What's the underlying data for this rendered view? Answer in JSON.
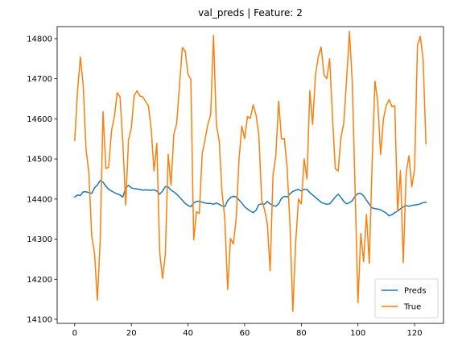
{
  "chart_data": {
    "type": "line",
    "title": "val_preds | Feature: 2",
    "xlabel": "",
    "ylabel": "",
    "xlim": [
      -6.2,
      130.2
    ],
    "ylim": [
      14090,
      14830
    ],
    "xticks": [
      0,
      20,
      40,
      60,
      80,
      100,
      120
    ],
    "yticks": [
      14100,
      14200,
      14300,
      14400,
      14500,
      14600,
      14700,
      14800
    ],
    "grid": false,
    "legend_position": "lower-right",
    "series": [
      {
        "name": "Preds",
        "color": "#1f77b4",
        "y": [
          14405,
          14410,
          14409,
          14418,
          14418,
          14416,
          14414,
          14428,
          14435,
          14446,
          14442,
          14432,
          14424,
          14420,
          14416,
          14413,
          14410,
          14405,
          14428,
          14434,
          14428,
          14426,
          14425,
          14424,
          14422,
          14423,
          14422,
          14422,
          14423,
          14420,
          14412,
          14420,
          14431,
          14430,
          14422,
          14418,
          14412,
          14405,
          14397,
          14389,
          14384,
          14381,
          14390,
          14394,
          14395,
          14392,
          14390,
          14389,
          14389,
          14387,
          14390,
          14387,
          14383,
          14381,
          14396,
          14404,
          14407,
          14405,
          14398,
          14390,
          14381,
          14375,
          14370,
          14366,
          14372,
          14386,
          14388,
          14387,
          14394,
          14388,
          14384,
          14382,
          14388,
          14402,
          14407,
          14405,
          14413,
          14419,
          14422,
          14424,
          14420,
          14424,
          14424,
          14416,
          14410,
          14404,
          14398,
          14392,
          14389,
          14387,
          14388,
          14396,
          14405,
          14412,
          14404,
          14394,
          14388,
          14391,
          14396,
          14407,
          14414,
          14414,
          14408,
          14397,
          14387,
          14378,
          14376,
          14375,
          14373,
          14369,
          14365,
          14358,
          14361,
          14366,
          14370,
          14376,
          14380,
          14384,
          14382,
          14384,
          14385,
          14386,
          14388,
          14391,
          14392
        ]
      },
      {
        "name": "True",
        "color": "#ff7f0e",
        "y": [
          14546,
          14670,
          14754,
          14684,
          14524,
          14466,
          14308,
          14265,
          14148,
          14298,
          14618,
          14476,
          14480,
          14571,
          14605,
          14665,
          14655,
          14540,
          14385,
          14548,
          14578,
          14658,
          14670,
          14657,
          14655,
          14644,
          14633,
          14575,
          14470,
          14539,
          14268,
          14202,
          14262,
          14512,
          14434,
          14562,
          14588,
          14684,
          14778,
          14769,
          14711,
          14698,
          14298,
          14368,
          14364,
          14513,
          14548,
          14586,
          14610,
          14808,
          14586,
          14546,
          14418,
          14350,
          14174,
          14302,
          14288,
          14351,
          14498,
          14582,
          14551,
          14606,
          14601,
          14635,
          14610,
          14560,
          14398,
          14374,
          14339,
          14221,
          14459,
          14508,
          14644,
          14550,
          14551,
          14477,
          14336,
          14120,
          14290,
          14400,
          14388,
          14500,
          14450,
          14670,
          14586,
          14710,
          14755,
          14779,
          14710,
          14700,
          14750,
          14607,
          14476,
          14470,
          14553,
          14590,
          14700,
          14818,
          14690,
          14420,
          14141,
          14314,
          14244,
          14362,
          14240,
          14490,
          14694,
          14640,
          14511,
          14600,
          14634,
          14648,
          14630,
          14633,
          14370,
          14471,
          14241,
          14463,
          14508,
          14430,
          14475,
          14783,
          14806,
          14748,
          14538
        ]
      }
    ]
  }
}
